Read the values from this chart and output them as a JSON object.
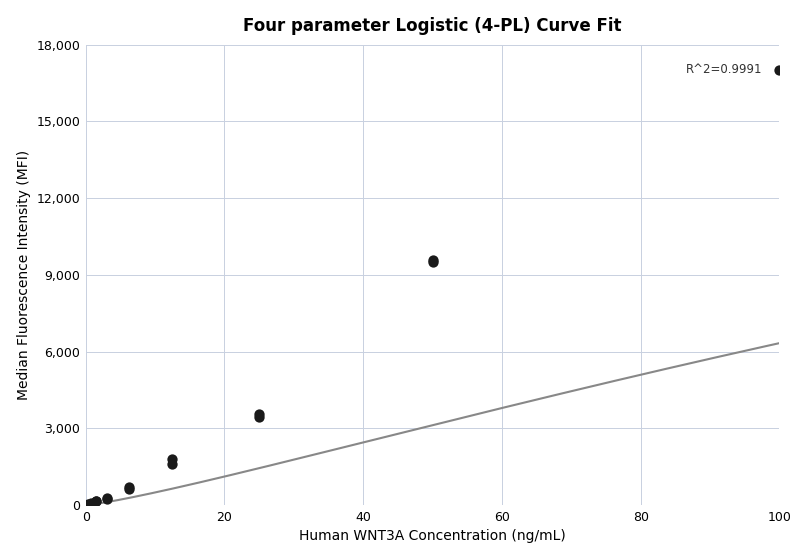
{
  "title": "Four parameter Logistic (4-PL) Curve Fit",
  "xlabel": "Human WNT3A Concentration (ng/mL)",
  "ylabel": "Median Fluorescence Intensity (MFI)",
  "r_squared": "R^2=0.9991",
  "scatter_x": [
    0.4,
    0.78,
    1.56,
    1.56,
    3.125,
    3.125,
    6.25,
    6.25,
    12.5,
    12.5,
    25.0,
    25.0,
    50.0,
    50.0,
    100.0
  ],
  "scatter_y": [
    30,
    100,
    150,
    170,
    260,
    300,
    650,
    720,
    1600,
    1800,
    3450,
    3550,
    9500,
    9600,
    17000
  ],
  "xlim": [
    0,
    100
  ],
  "ylim": [
    0,
    18000
  ],
  "xticks": [
    0,
    20,
    40,
    60,
    80,
    100
  ],
  "yticks": [
    0,
    3000,
    6000,
    9000,
    12000,
    15000,
    18000
  ],
  "scatter_color": "#1a1a1a",
  "scatter_size": 55,
  "line_color": "#888888",
  "line_width": 1.5,
  "background_color": "#ffffff",
  "grid_color": "#c8d0e0",
  "title_fontsize": 12,
  "label_fontsize": 10,
  "tick_fontsize": 9,
  "annotation_fontsize": 8.5
}
